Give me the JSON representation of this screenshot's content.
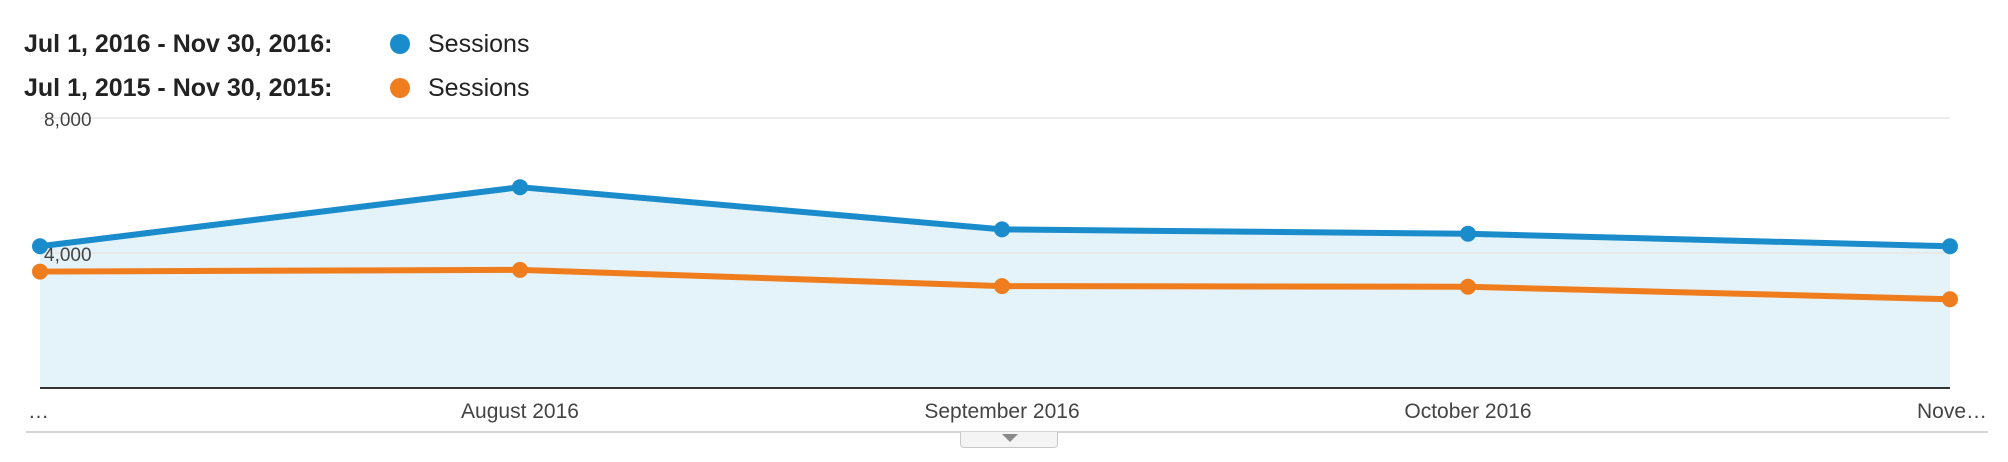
{
  "legend": {
    "current_range": "Jul 1, 2016 - Nov 30, 2016:",
    "previous_range": "Jul 1, 2015 - Nov 30, 2015:",
    "current_series": "Sessions",
    "previous_series": "Sessions"
  },
  "colors": {
    "current": "#1a8ccb",
    "previous": "#ef7d1e",
    "area_fill": "#e4f2f9",
    "grid": "#e6e6e6",
    "axis": "#333333"
  },
  "chart_data": {
    "type": "line",
    "categories": [
      "…",
      "August 2016",
      "September 2016",
      "October 2016",
      "Nove…"
    ],
    "series": [
      {
        "name": "Sessions",
        "range": "Jul 1, 2016 - Nov 30, 2016",
        "values": [
          4200,
          5950,
          4700,
          4570,
          4200
        ],
        "area": true
      },
      {
        "name": "Sessions",
        "range": "Jul 1, 2015 - Nov 30, 2015",
        "values": [
          3450,
          3500,
          3020,
          3000,
          2630
        ]
      }
    ],
    "yticks": [
      {
        "value": 4000,
        "label": "4,000"
      },
      {
        "value": 8000,
        "label": "8,000"
      }
    ],
    "ylim": [
      0,
      8000
    ],
    "grid": true,
    "legend_position": "top-left"
  },
  "controls": {
    "expand_icon": "chevron-down-icon"
  }
}
